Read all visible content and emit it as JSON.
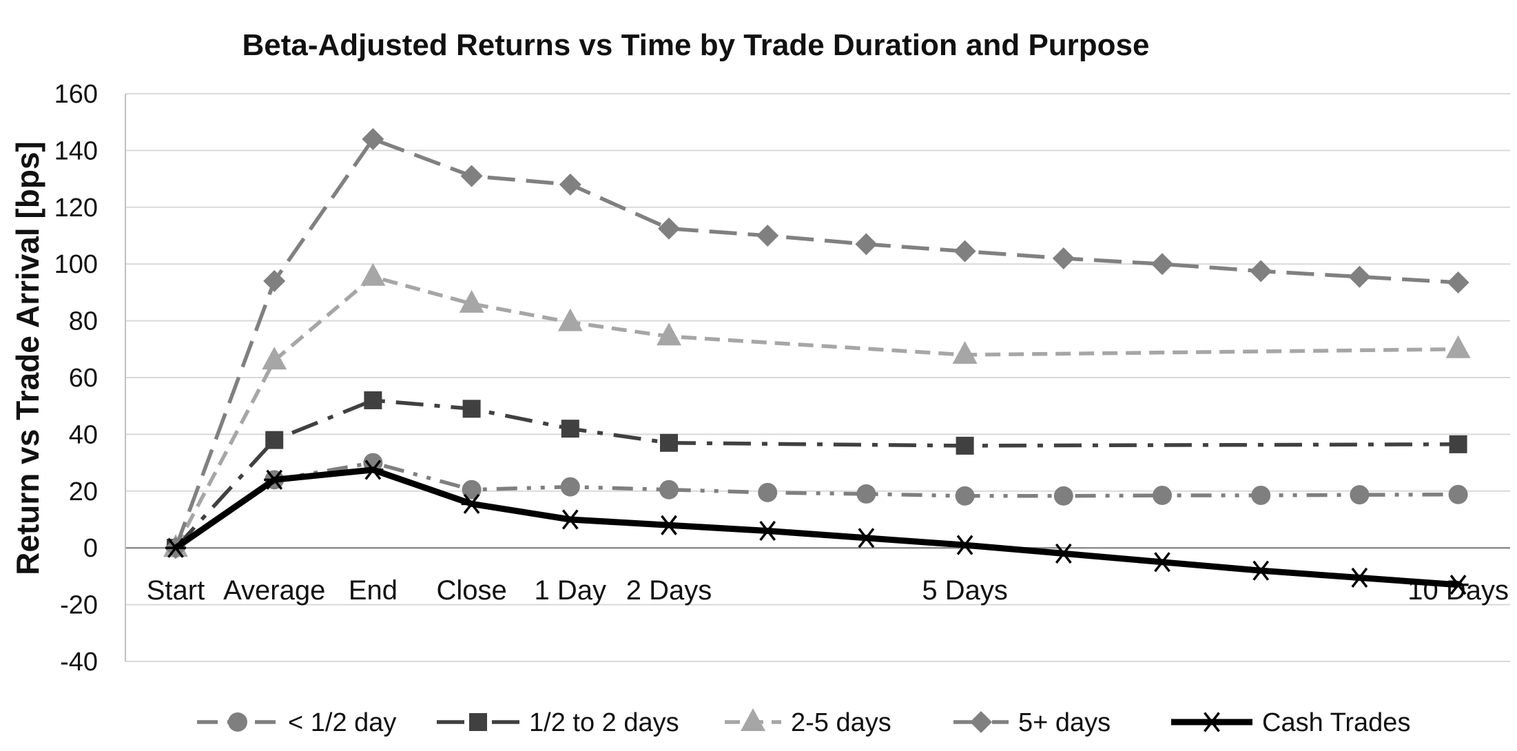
{
  "chart_data": {
    "type": "line",
    "title": "Beta-Adjusted Returns vs Time by Trade Duration and Purpose",
    "ylabel": "Return vs Trade Arrival [bps]",
    "xlabel": "",
    "ylim": [
      -40,
      160
    ],
    "yticks": [
      -40,
      -20,
      0,
      20,
      40,
      60,
      80,
      100,
      120,
      140,
      160
    ],
    "categories": [
      "Start",
      "Average",
      "End",
      "Close",
      "1 Day",
      "2 Days",
      "",
      "",
      "5 Days",
      "",
      "",
      "",
      "",
      "10 Days"
    ],
    "grid": true,
    "legend_position": "bottom",
    "series": [
      {
        "name": "< 1/2 day",
        "color": "#7f7f7f",
        "marker": "circle",
        "dash": "dash-dot-dot",
        "values": [
          0,
          24,
          30,
          20.5,
          21.5,
          20.5,
          19.5,
          19,
          18.3,
          18.3,
          18.5,
          18.5,
          18.7,
          18.8
        ]
      },
      {
        "name": "1/2 to 2 days",
        "color": "#404040",
        "marker": "square",
        "dash": "long-dash-dot",
        "values": [
          0,
          38,
          52,
          49,
          42,
          37,
          null,
          null,
          36,
          null,
          null,
          null,
          null,
          36.5
        ]
      },
      {
        "name": "2-5 days",
        "color": "#a6a6a6",
        "marker": "triangle",
        "dash": "short-dash",
        "values": [
          0,
          66,
          95.5,
          86,
          79.5,
          74.5,
          null,
          null,
          68,
          null,
          null,
          null,
          null,
          70
        ]
      },
      {
        "name": "5+ days",
        "color": "#808080",
        "marker": "diamond",
        "dash": "long-dash",
        "values": [
          0,
          94,
          144,
          131,
          128,
          112.5,
          110,
          107,
          104.5,
          102,
          100,
          97.5,
          95.5,
          93.5
        ]
      },
      {
        "name": "Cash Trades",
        "color": "#000000",
        "marker": "asterisk",
        "dash": "solid",
        "values": [
          0,
          24,
          27.5,
          15.5,
          10,
          8,
          6,
          3.5,
          1,
          -2,
          -5,
          -8,
          -10.5,
          -13
        ]
      }
    ]
  }
}
